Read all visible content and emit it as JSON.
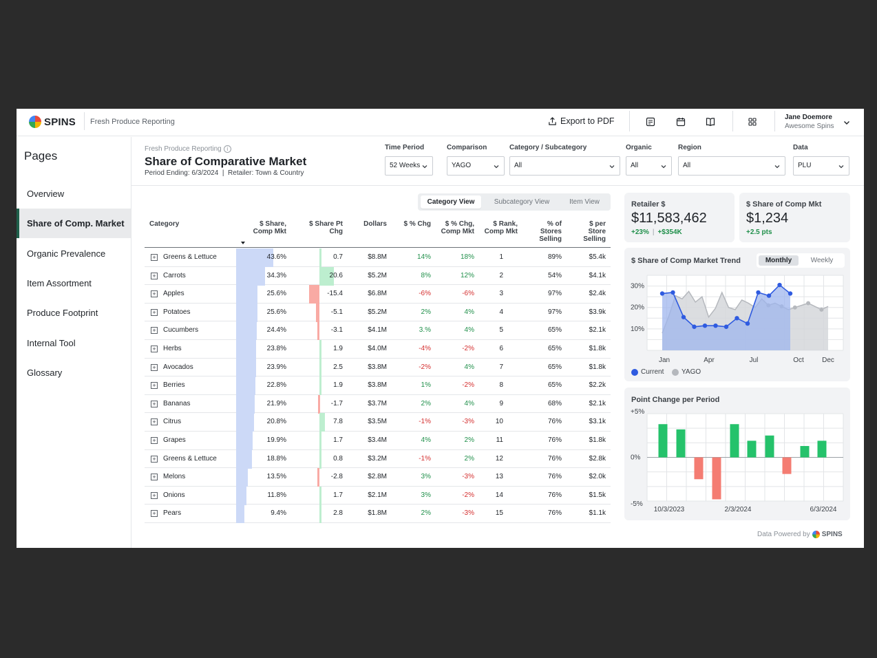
{
  "app": {
    "brand": "SPINS",
    "title": "Fresh Produce Reporting",
    "export_label": "Export to PDF",
    "user": {
      "name": "Jane Doemore",
      "org": "Awesome Spins"
    }
  },
  "sidebar": {
    "title": "Pages",
    "items": [
      {
        "label": "Overview",
        "active": false
      },
      {
        "label": "Share of Comp. Market",
        "active": true
      },
      {
        "label": "Organic Prevalence",
        "active": false
      },
      {
        "label": "Item Assortment",
        "active": false
      },
      {
        "label": "Produce Footprint",
        "active": false
      },
      {
        "label": "Internal Tool",
        "active": false
      },
      {
        "label": "Glossary",
        "active": false
      }
    ]
  },
  "page": {
    "breadcrumb": "Fresh Produce Reporting",
    "title": "Share of Comparative Market",
    "period_ending": "Period Ending: 6/3/2024",
    "separator": "|",
    "retailer": "Retailer: Town & Country"
  },
  "filters": [
    {
      "label": "Time Period",
      "value": "52 Weeks"
    },
    {
      "label": "Comparison",
      "value": "YAGO"
    },
    {
      "label": "Category / Subcategory",
      "value": "All"
    },
    {
      "label": "Organic",
      "value": "All"
    },
    {
      "label": "Region",
      "value": "All"
    },
    {
      "label": "Data",
      "value": "PLU"
    }
  ],
  "view_toggle": {
    "options": [
      "Category View",
      "Subcategory View",
      "Item View"
    ],
    "active": "Category View"
  },
  "table": {
    "headers": {
      "category": "Category",
      "share": [
        "$ Share,",
        "Comp Mkt"
      ],
      "share_pt": [
        "$ Share Pt",
        "Chg"
      ],
      "dollars": "Dollars",
      "pct_chg": "$ % Chg",
      "pct_chg_comp": [
        "$ % Chg,",
        "Comp Mkt"
      ],
      "rank": [
        "$ Rank,",
        "Comp Mkt"
      ],
      "stores": [
        "% of",
        "Stores",
        "Selling"
      ],
      "per_store": [
        "$ per",
        "Store",
        "Selling"
      ]
    },
    "rows": [
      {
        "category": "Greens & Lettuce",
        "share": 43.6,
        "share_label": "43.6%",
        "pt": 0.7,
        "pt_label": "0.7",
        "dollars": "$8.8M",
        "pct_chg": "14%",
        "pct_chg_comp": "18%",
        "rank": "1",
        "stores": "89%",
        "per_store": "$5.4k"
      },
      {
        "category": "Carrots",
        "share": 34.3,
        "share_label": "34.3%",
        "pt": 20.6,
        "pt_label": "20.6",
        "dollars": "$5.2M",
        "pct_chg": "8%",
        "pct_chg_comp": "12%",
        "rank": "2",
        "stores": "54%",
        "per_store": "$4.1k"
      },
      {
        "category": "Apples",
        "share": 25.6,
        "share_label": "25.6%",
        "pt": -15.4,
        "pt_label": "-15.4",
        "dollars": "$6.8M",
        "pct_chg": "-6%",
        "pct_chg_comp": "-6%",
        "rank": "3",
        "stores": "97%",
        "per_store": "$2.4k"
      },
      {
        "category": "Potatoes",
        "share": 25.6,
        "share_label": "25.6%",
        "pt": -5.1,
        "pt_label": "-5.1",
        "dollars": "$5.2M",
        "pct_chg": "2%",
        "pct_chg_comp": "4%",
        "rank": "4",
        "stores": "97%",
        "per_store": "$3.9k"
      },
      {
        "category": "Cucumbers",
        "share": 24.4,
        "share_label": "24.4%",
        "pt": -3.1,
        "pt_label": "-3.1",
        "dollars": "$4.1M",
        "pct_chg": "3.%",
        "pct_chg_comp": "4%",
        "rank": "5",
        "stores": "65%",
        "per_store": "$2.1k"
      },
      {
        "category": "Herbs",
        "share": 23.8,
        "share_label": "23.8%",
        "pt": 1.9,
        "pt_label": "1.9",
        "dollars": "$4.0M",
        "pct_chg": "-4%",
        "pct_chg_comp": "-2%",
        "rank": "6",
        "stores": "65%",
        "per_store": "$1.8k"
      },
      {
        "category": "Avocados",
        "share": 23.9,
        "share_label": "23.9%",
        "pt": 2.5,
        "pt_label": "2.5",
        "dollars": "$3.8M",
        "pct_chg": "-2%",
        "pct_chg_comp": "4%",
        "rank": "7",
        "stores": "65%",
        "per_store": "$1.8k"
      },
      {
        "category": "Berries",
        "share": 22.8,
        "share_label": "22.8%",
        "pt": 1.9,
        "pt_label": "1.9",
        "dollars": "$3.8M",
        "pct_chg": "1%",
        "pct_chg_comp": "-2%",
        "rank": "8",
        "stores": "65%",
        "per_store": "$2.2k"
      },
      {
        "category": "Bananas",
        "share": 21.9,
        "share_label": "21.9%",
        "pt": -1.7,
        "pt_label": "-1.7",
        "dollars": "$3.7M",
        "pct_chg": "2%",
        "pct_chg_comp": "4%",
        "rank": "9",
        "stores": "68%",
        "per_store": "$2.1k"
      },
      {
        "category": "Citrus",
        "share": 20.8,
        "share_label": "20.8%",
        "pt": 7.8,
        "pt_label": "7.8",
        "dollars": "$3.5M",
        "pct_chg": "-1%",
        "pct_chg_comp": "-3%",
        "rank": "10",
        "stores": "76%",
        "per_store": "$3.1k"
      },
      {
        "category": "Grapes",
        "share": 19.9,
        "share_label": "19.9%",
        "pt": 1.7,
        "pt_label": "1.7",
        "dollars": "$3.4M",
        "pct_chg": "4%",
        "pct_chg_comp": "2%",
        "rank": "11",
        "stores": "76%",
        "per_store": "$1.8k"
      },
      {
        "category": "Greens & Lettuce",
        "share": 18.8,
        "share_label": "18.8%",
        "pt": 0.8,
        "pt_label": "0.8",
        "dollars": "$3.2M",
        "pct_chg": "-1%",
        "pct_chg_comp": "2%",
        "rank": "12",
        "stores": "76%",
        "per_store": "$2.8k"
      },
      {
        "category": "Melons",
        "share": 13.5,
        "share_label": "13.5%",
        "pt": -2.8,
        "pt_label": "-2.8",
        "dollars": "$2.8M",
        "pct_chg": "3%",
        "pct_chg_comp": "-3%",
        "rank": "13",
        "stores": "76%",
        "per_store": "$2.0k"
      },
      {
        "category": "Onions",
        "share": 11.8,
        "share_label": "11.8%",
        "pt": 1.7,
        "pt_label": "1.7",
        "dollars": "$2.1M",
        "pct_chg": "3%",
        "pct_chg_comp": "-2%",
        "rank": "14",
        "stores": "76%",
        "per_store": "$1.5k"
      },
      {
        "category": "Pears",
        "share": 9.4,
        "share_label": "9.4%",
        "pt": 2.8,
        "pt_label": "2.8",
        "dollars": "$1.8M",
        "pct_chg": "2%",
        "pct_chg_comp": "-3%",
        "rank": "15",
        "stores": "76%",
        "per_store": "$1.1k"
      }
    ]
  },
  "kpis": [
    {
      "label": "Retailer $",
      "value": "$11,583,462",
      "sub1": "+23%",
      "sub_sep": "|",
      "sub2": "+$354K"
    },
    {
      "label": "$ Share of Comp Mkt",
      "value": "$1,234",
      "sub1": "+2.5 pts"
    }
  ],
  "colors": {
    "current": "#2f5be0",
    "yago": "#b5b8bd",
    "share_bar": "#ccd9f7",
    "positive": "#25c26b",
    "negative": "#f47c72",
    "pt_positive_bar": "#bdeecf",
    "pt_negative_bar": "#f9aaa4"
  },
  "trend": {
    "title": "$ Share of Comp Market Trend",
    "options": [
      "Monthly",
      "Weekly"
    ],
    "active": "Monthly",
    "legend_current": "Current",
    "legend_yago": "YAGO"
  },
  "point_change": {
    "title": "Point Change per Period"
  },
  "chart_data": [
    {
      "type": "line",
      "title": "$ Share of Comp Market Trend",
      "x_tick_labels": [
        "Jan",
        "Apr",
        "Jul",
        "Oct",
        "Dec"
      ],
      "y_tick_labels": [
        "10%",
        "20%",
        "30%"
      ],
      "ylim": [
        0,
        35
      ],
      "grid": true,
      "legend_placement": "bottom-left",
      "series": [
        {
          "name": "Current",
          "values": [
            26.5,
            27.0,
            15.5,
            11.0,
            11.5,
            11.5,
            11.0,
            15.0,
            12.5,
            27.0,
            25.5,
            30.5,
            26.5
          ]
        },
        {
          "name": "YAGO",
          "values": [
            8.0,
            16.0,
            25.5,
            24.0,
            27.5,
            22.5,
            25.0,
            15.5,
            19.5,
            27.0,
            20.0,
            19.0,
            23.5,
            22.0,
            20.0,
            24.0,
            21.0,
            22.0,
            20.5,
            19.0,
            20.0,
            21.0,
            22.0,
            20.5,
            19.0,
            20.5
          ]
        }
      ],
      "current_points": 13,
      "yago_points": 26
    },
    {
      "type": "bar",
      "title": "Point Change per Period",
      "x_tick_labels": [
        "10/3/2023",
        "2/3/2024",
        "6/3/2024"
      ],
      "y_tick_labels": [
        "+5%",
        "0%",
        "-5%"
      ],
      "ylim": [
        -5,
        5
      ],
      "grid": true,
      "values": [
        3.8,
        3.2,
        -2.5,
        -4.8,
        3.8,
        1.9,
        2.5,
        -1.9,
        1.3,
        1.9
      ]
    }
  ],
  "footer": {
    "note": "Data Powered by",
    "brand": "SPINS"
  }
}
